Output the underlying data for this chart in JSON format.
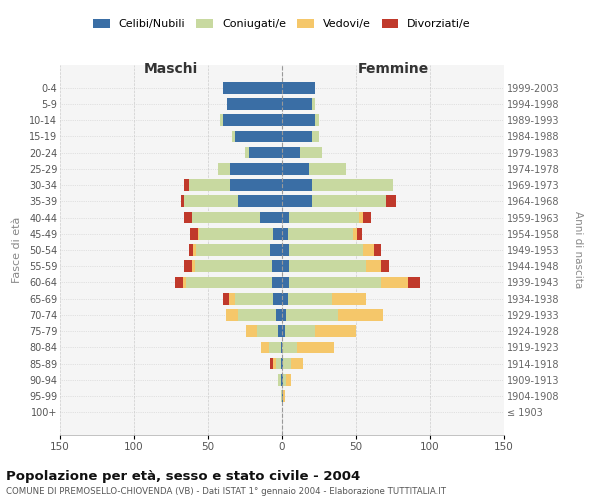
{
  "age_groups": [
    "100+",
    "95-99",
    "90-94",
    "85-89",
    "80-84",
    "75-79",
    "70-74",
    "65-69",
    "60-64",
    "55-59",
    "50-54",
    "45-49",
    "40-44",
    "35-39",
    "30-34",
    "25-29",
    "20-24",
    "15-19",
    "10-14",
    "5-9",
    "0-4"
  ],
  "birth_years": [
    "≤ 1903",
    "1904-1908",
    "1909-1913",
    "1914-1918",
    "1919-1923",
    "1924-1928",
    "1929-1933",
    "1934-1938",
    "1939-1943",
    "1944-1948",
    "1949-1953",
    "1954-1958",
    "1959-1963",
    "1964-1968",
    "1969-1973",
    "1974-1978",
    "1979-1983",
    "1984-1988",
    "1989-1993",
    "1994-1998",
    "1999-2003"
  ],
  "males_celibi": [
    0,
    0,
    1,
    1,
    1,
    3,
    4,
    6,
    7,
    7,
    8,
    6,
    15,
    30,
    35,
    35,
    22,
    32,
    40,
    37,
    40
  ],
  "males_coniugati": [
    0,
    1,
    2,
    3,
    8,
    14,
    26,
    26,
    58,
    52,
    50,
    50,
    46,
    36,
    28,
    8,
    3,
    2,
    2,
    0,
    0
  ],
  "males_vedovi": [
    0,
    0,
    0,
    2,
    5,
    7,
    8,
    4,
    2,
    2,
    2,
    1,
    0,
    0,
    0,
    0,
    0,
    0,
    0,
    0,
    0
  ],
  "males_divorziati": [
    0,
    0,
    0,
    2,
    0,
    0,
    0,
    4,
    5,
    5,
    3,
    5,
    5,
    2,
    3,
    0,
    0,
    0,
    0,
    0,
    0
  ],
  "females_nubili": [
    0,
    1,
    1,
    1,
    0,
    2,
    3,
    4,
    5,
    5,
    5,
    4,
    5,
    20,
    20,
    18,
    12,
    20,
    22,
    20,
    22
  ],
  "females_coniugate": [
    0,
    0,
    2,
    5,
    10,
    20,
    35,
    30,
    62,
    52,
    50,
    44,
    47,
    50,
    55,
    25,
    15,
    5,
    3,
    2,
    0
  ],
  "females_vedove": [
    0,
    1,
    3,
    8,
    25,
    28,
    30,
    23,
    18,
    10,
    7,
    3,
    3,
    0,
    0,
    0,
    0,
    0,
    0,
    0,
    0
  ],
  "females_divorziate": [
    0,
    0,
    0,
    0,
    0,
    0,
    0,
    0,
    8,
    5,
    5,
    3,
    5,
    7,
    0,
    0,
    0,
    0,
    0,
    0,
    0
  ],
  "color_celibi": "#3a6ea5",
  "color_coniugati": "#c8d9a0",
  "color_vedovi": "#f5c76a",
  "color_divorziati": "#c0392b",
  "bg_color": "#ffffff",
  "plot_bg": "#f5f5f5",
  "grid_color": "#cccccc",
  "xlim": 150,
  "xticks": [
    -150,
    -100,
    -50,
    0,
    50,
    100,
    150
  ],
  "xtick_labels": [
    "150",
    "100",
    "50",
    "0",
    "50",
    "100",
    "150"
  ],
  "title": "Popolazione per età, sesso e stato civile - 2004",
  "subtitle": "COMUNE DI PREMOSELLO-CHIOVENDA (VB) - Dati ISTAT 1° gennaio 2004 - Elaborazione TUTTITALIA.IT",
  "ylabel_left": "Fasce di età",
  "ylabel_right": "Anni di nascita",
  "label_maschi": "Maschi",
  "label_femmine": "Femmine",
  "legend_labels": [
    "Celibi/Nubili",
    "Coniugati/e",
    "Vedovi/e",
    "Divorziati/e"
  ]
}
